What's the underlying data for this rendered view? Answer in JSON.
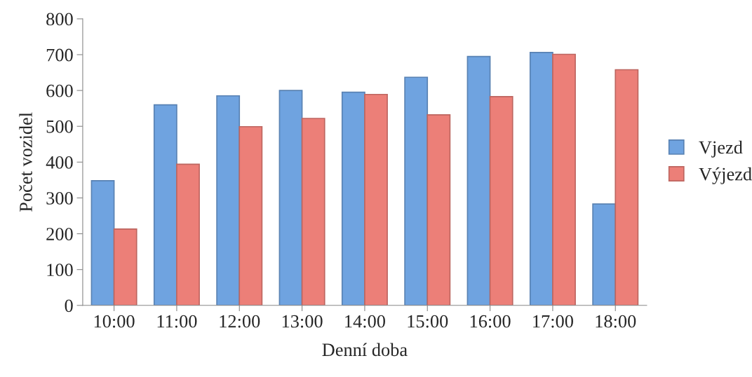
{
  "chart_data": {
    "type": "bar",
    "xlabel": "Denní doba",
    "ylabel": "Počet vozidel",
    "categories": [
      "10:00",
      "11:00",
      "12:00",
      "13:00",
      "14:00",
      "15:00",
      "16:00",
      "17:00",
      "18:00"
    ],
    "series": [
      {
        "name": "Vjezd",
        "color": "#6fa3e0",
        "values": [
          348,
          560,
          585,
          600,
          595,
          637,
          695,
          706,
          283
        ]
      },
      {
        "name": "Výjezd",
        "color": "#ec7f78",
        "values": [
          213,
          394,
          499,
          522,
          589,
          532,
          583,
          701,
          658
        ]
      }
    ],
    "ylim": [
      0,
      800
    ],
    "yticks": [
      0,
      100,
      200,
      300,
      400,
      500,
      600,
      700,
      800
    ],
    "grid": false,
    "legend": "right"
  }
}
